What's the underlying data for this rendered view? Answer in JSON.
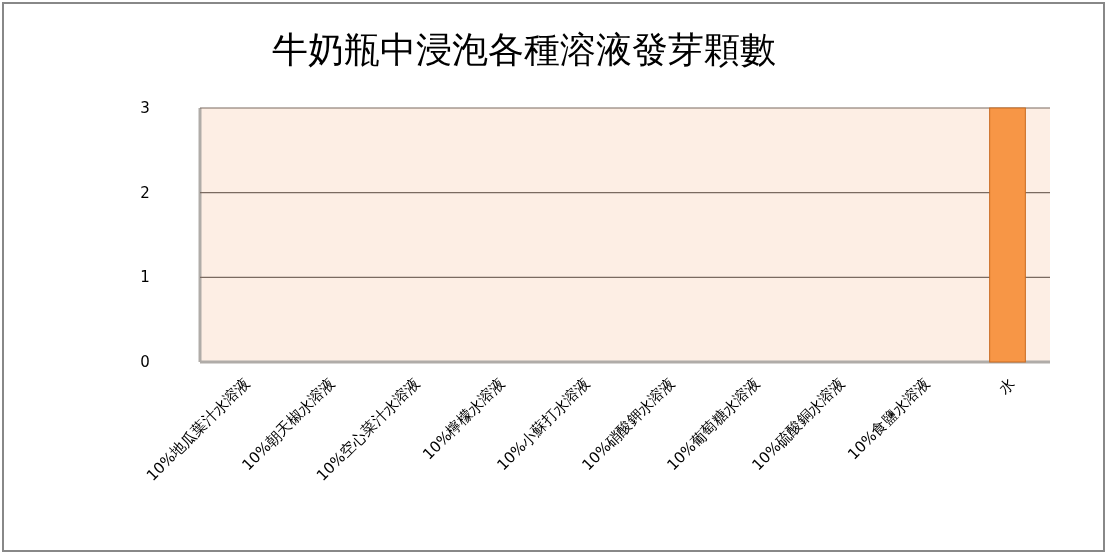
{
  "chart_data": {
    "type": "bar",
    "title": "牛奶瓶中浸泡各種溶液發芽顆數",
    "categories": [
      "10%地瓜葉汁水溶液",
      "10%朝天椒水溶液",
      "10%空心菜汁水溶液",
      "10%檸檬水溶液",
      "10%小蘇打水溶液",
      "10%硝酸鉀水溶液",
      "10%葡萄糖水溶液",
      "10%硫酸銅水溶液",
      "10%食鹽水溶液",
      "水"
    ],
    "values": [
      0,
      0,
      0,
      0,
      0,
      0,
      0,
      0,
      0,
      3
    ],
    "color": "#f79646",
    "ylim": [
      0,
      3
    ],
    "yticks": [
      0,
      1,
      2,
      3
    ],
    "grid": "y"
  }
}
